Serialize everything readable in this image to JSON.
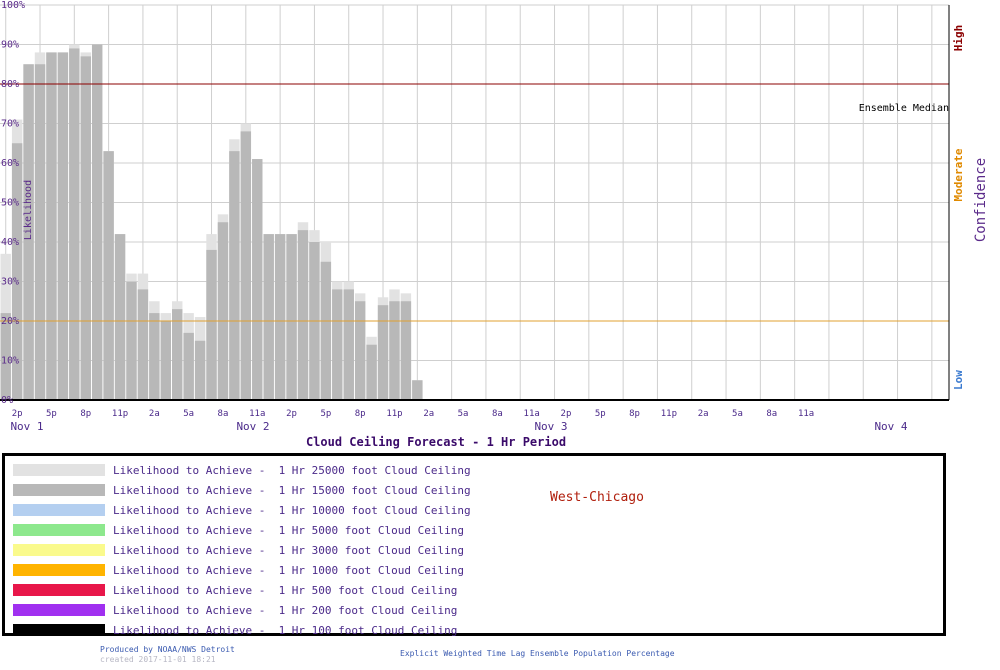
{
  "chart_data": {
    "type": "bar",
    "title": "Cloud Ceiling Forecast -  1 Hr Period",
    "ylabel": "Likelihood",
    "ylabel_right": "Confidence",
    "confidence_levels": [
      "High",
      "Moderate",
      "Low"
    ],
    "ensemble_label": "Ensemble Median",
    "ylim": [
      0,
      100
    ],
    "y_ticks": [
      "0%",
      "10%",
      "20%",
      "30%",
      "40%",
      "50%",
      "60%",
      "70%",
      "80%",
      "90%",
      "100%"
    ],
    "reference_lines": [
      80,
      20
    ],
    "x_tick_labels": [
      "2p",
      "5p",
      "8p",
      "11p",
      "2a",
      "5a",
      "8a",
      "11a",
      "2p",
      "5p",
      "8p",
      "11p",
      "2a",
      "5a",
      "8a",
      "11a",
      "2p",
      "5p",
      "8p",
      "11p",
      "2a",
      "5a",
      "8a",
      "11a"
    ],
    "day_labels": [
      "Nov  1",
      "Nov  2",
      "Nov  3",
      "Nov  4"
    ],
    "colors": {
      "c25000": "#e2e2e2",
      "c15000": "#b8b8b8",
      "c10000": "#b4cff0",
      "c5000": "#8de88d",
      "c3000": "#fafa8c",
      "c1000": "#ffb400",
      "c500": "#e8174a",
      "c200": "#a030f0",
      "c100": "#000000",
      "high_line": "#8b0000",
      "moderate_line": "#e0a030"
    },
    "series_order": [
      "c25000",
      "c15000",
      "c10000",
      "c5000",
      "c3000",
      "c1000",
      "c500",
      "c200",
      "c100"
    ],
    "hours_start": "2017-11-01 13:00",
    "values": {
      "c25000": [
        37,
        71,
        85,
        88,
        88,
        88,
        90,
        88,
        90,
        63,
        42,
        32,
        32,
        25,
        22,
        25,
        22,
        21,
        42,
        47,
        66,
        70,
        61,
        42,
        42,
        42,
        45,
        43,
        40,
        30,
        30,
        27,
        16,
        26,
        28,
        27,
        5,
        0,
        0,
        0,
        0,
        0,
        0,
        0,
        0,
        0,
        0,
        0,
        0,
        0,
        0,
        0,
        0,
        0,
        0,
        0,
        0,
        0,
        0,
        0,
        0,
        0,
        0,
        0,
        0,
        0,
        0,
        0,
        0,
        0,
        0,
        0,
        0,
        0,
        0,
        0,
        0,
        0,
        0,
        0,
        0,
        0,
        0,
        0,
        0,
        0,
        0,
        0,
        0,
        0,
        0,
        0,
        0,
        0,
        0,
        0,
        0,
        0,
        0,
        0,
        0,
        0,
        0,
        0,
        0,
        0,
        0,
        0,
        0,
        0,
        0,
        0,
        0,
        0,
        0,
        0,
        0,
        0,
        0,
        0,
        0,
        0,
        0,
        0,
        0,
        0,
        0,
        0,
        0,
        0,
        0,
        0,
        0,
        0,
        0,
        0,
        0,
        0,
        0,
        0,
        0,
        0,
        0,
        0,
        0,
        0,
        0,
        0,
        0,
        0,
        0,
        0,
        0,
        0,
        0,
        0,
        0,
        0,
        0,
        0,
        0,
        0,
        0,
        0,
        0,
        0,
        0,
        0,
        0,
        0,
        0,
        0,
        0,
        0,
        0,
        0,
        0,
        0,
        0,
        0,
        0,
        0,
        0,
        0,
        0,
        0,
        0,
        0,
        0,
        0,
        0,
        0,
        0,
        0,
        0,
        0,
        0,
        0,
        0,
        0,
        0,
        0,
        0,
        0,
        0,
        0,
        0,
        0,
        0,
        0,
        0
      ],
      "c15000": [
        22,
        65,
        85,
        85,
        88,
        88,
        89,
        87,
        90,
        63,
        42,
        30,
        28,
        22,
        20,
        23,
        17,
        15,
        38,
        45,
        63,
        68,
        61,
        42,
        42,
        42,
        43,
        40,
        35,
        28,
        28,
        25,
        14,
        24,
        25,
        25,
        5,
        0,
        0,
        0,
        0,
        0,
        0,
        0,
        0,
        0,
        0,
        0,
        0,
        0,
        0,
        0,
        0,
        0,
        0,
        0,
        0,
        0,
        0,
        0,
        0,
        0,
        0,
        0,
        0,
        0,
        0,
        0,
        0,
        0,
        0,
        0,
        0,
        0,
        0,
        0,
        0,
        0,
        0,
        0,
        0,
        0,
        0,
        0,
        0,
        0,
        0,
        0,
        0,
        0,
        0,
        0,
        0,
        0,
        0,
        0,
        0,
        0,
        0,
        0,
        0,
        0,
        0,
        0,
        0,
        0,
        0,
        0,
        0,
        0,
        0,
        0,
        0,
        0,
        0,
        0,
        0,
        0,
        0,
        0,
        0,
        0,
        0,
        0,
        0,
        0,
        0,
        0,
        0,
        0,
        0,
        0,
        0,
        0,
        0,
        0,
        0,
        0,
        0,
        0,
        0,
        0,
        0,
        0,
        0,
        0,
        0,
        0,
        0,
        0,
        0,
        0,
        0,
        0,
        0,
        0,
        0,
        0,
        0,
        0,
        0,
        0,
        0,
        0,
        0,
        0,
        0,
        0,
        0,
        0,
        0,
        0,
        0,
        0,
        0,
        0,
        0,
        0,
        0,
        0,
        0,
        0,
        0,
        0,
        0,
        0,
        0,
        0,
        0,
        0,
        0,
        0,
        0,
        0,
        0,
        0,
        0,
        0,
        0,
        0,
        0,
        0,
        0,
        0,
        0,
        0,
        0,
        0,
        0,
        0,
        0
      ]
    }
  },
  "legend": {
    "items": [
      {
        "key": "c25000",
        "label": "Likelihood to Achieve -  1 Hr 25000 foot Cloud Ceiling"
      },
      {
        "key": "c15000",
        "label": "Likelihood to Achieve -  1 Hr 15000 foot Cloud Ceiling"
      },
      {
        "key": "c10000",
        "label": "Likelihood to Achieve -  1 Hr 10000 foot Cloud Ceiling"
      },
      {
        "key": "c5000",
        "label": "Likelihood to Achieve -  1 Hr 5000 foot Cloud Ceiling"
      },
      {
        "key": "c3000",
        "label": "Likelihood to Achieve -  1 Hr 3000 foot Cloud Ceiling"
      },
      {
        "key": "c1000",
        "label": "Likelihood to Achieve -  1 Hr 1000 foot Cloud Ceiling"
      },
      {
        "key": "c500",
        "label": "Likelihood to Achieve -  1 Hr 500 foot Cloud Ceiling"
      },
      {
        "key": "c200",
        "label": "Likelihood to Achieve -  1 Hr 200 foot Cloud Ceiling"
      },
      {
        "key": "c100",
        "label": "Likelihood to Achieve -  1 Hr 100 foot Cloud Ceiling"
      }
    ]
  },
  "station": "West-Chicago",
  "footer": {
    "produced_by": "Produced by NOAA/NWS Detroit",
    "created": "created 2017-11-01 18:21",
    "method": "Explicit Weighted Time Lag Ensemble Population Percentage"
  }
}
